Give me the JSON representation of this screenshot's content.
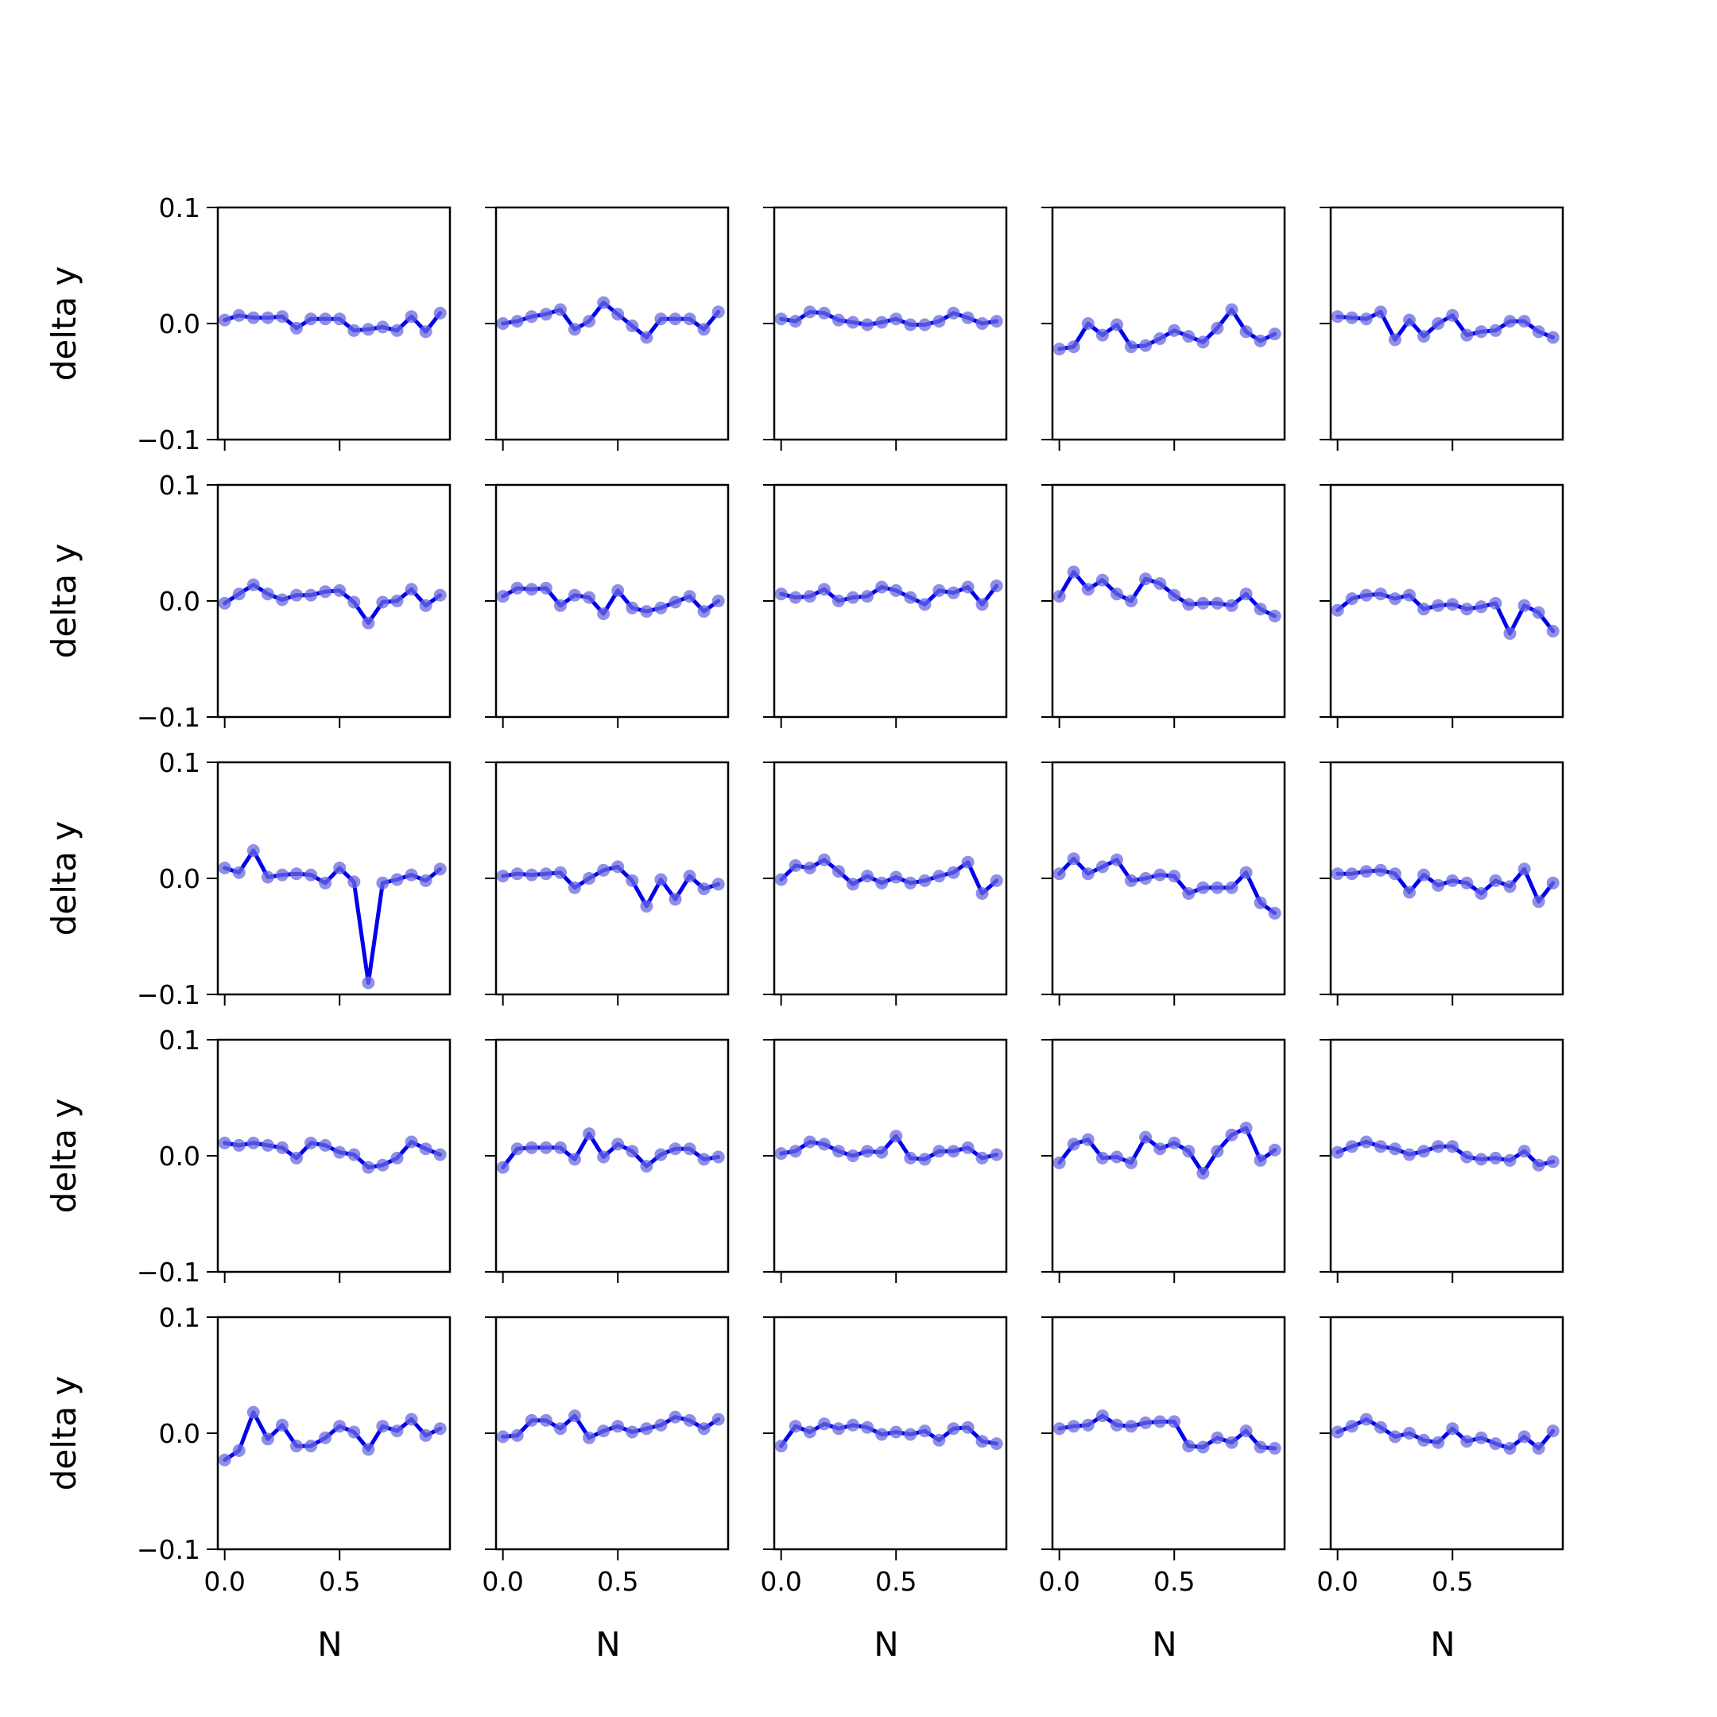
{
  "chart_data": {
    "type": "line",
    "layout": "5x5 grid of small multiples, shared axes",
    "xlabel": "N",
    "ylabel": "delta y",
    "xlim": [
      -0.03,
      0.98
    ],
    "ylim": [
      -0.1,
      0.1
    ],
    "xticks": [
      0.0,
      0.5
    ],
    "xtick_labels": [
      "0.0",
      "0.5"
    ],
    "yticks": [
      0.1,
      0.0,
      -0.1
    ],
    "ytick_labels": [
      "0.1",
      "0.0",
      "−0.1"
    ],
    "x": [
      0.0,
      0.0625,
      0.125,
      0.1875,
      0.25,
      0.3125,
      0.375,
      0.4375,
      0.5,
      0.5625,
      0.625,
      0.6875,
      0.75,
      0.8125,
      0.875,
      0.9375
    ],
    "line_color": "#0000ee",
    "marker_color": "#6a6ae0",
    "panels": [
      {
        "values": [
          0.003,
          0.007,
          0.005,
          0.005,
          0.006,
          -0.004,
          0.004,
          0.004,
          0.004,
          -0.006,
          -0.005,
          -0.003,
          -0.006,
          0.006,
          -0.007,
          0.009
        ]
      },
      {
        "values": [
          0.0,
          0.002,
          0.006,
          0.008,
          0.012,
          -0.005,
          0.002,
          0.018,
          0.008,
          -0.002,
          -0.012,
          0.004,
          0.004,
          0.004,
          -0.005,
          0.01
        ]
      },
      {
        "values": [
          0.004,
          0.002,
          0.01,
          0.009,
          0.003,
          0.001,
          -0.001,
          0.001,
          0.004,
          -0.001,
          -0.001,
          0.002,
          0.009,
          0.005,
          0.0,
          0.002
        ]
      },
      {
        "values": [
          -0.022,
          -0.02,
          0.0,
          -0.01,
          -0.001,
          -0.02,
          -0.019,
          -0.013,
          -0.006,
          -0.011,
          -0.016,
          -0.004,
          0.012,
          -0.007,
          -0.015,
          -0.009
        ]
      },
      {
        "values": [
          0.006,
          0.005,
          0.004,
          0.01,
          -0.014,
          0.003,
          -0.011,
          0.0,
          0.007,
          -0.01,
          -0.007,
          -0.006,
          0.002,
          0.002,
          -0.007,
          -0.012
        ]
      },
      {
        "values": [
          -0.002,
          0.006,
          0.014,
          0.006,
          0.001,
          0.005,
          0.005,
          0.008,
          0.009,
          -0.001,
          -0.019,
          -0.001,
          0.0,
          0.01,
          -0.004,
          0.005
        ]
      },
      {
        "values": [
          0.004,
          0.011,
          0.01,
          0.011,
          -0.004,
          0.005,
          0.003,
          -0.011,
          0.009,
          -0.006,
          -0.009,
          -0.006,
          -0.001,
          0.004,
          -0.009,
          0.0
        ]
      },
      {
        "values": [
          0.006,
          0.003,
          0.004,
          0.01,
          0.0,
          0.003,
          0.004,
          0.012,
          0.009,
          0.003,
          -0.003,
          0.009,
          0.007,
          0.012,
          -0.003,
          0.013
        ]
      },
      {
        "values": [
          0.004,
          0.025,
          0.01,
          0.018,
          0.006,
          0.0,
          0.019,
          0.015,
          0.005,
          -0.003,
          -0.002,
          -0.002,
          -0.004,
          0.006,
          -0.007,
          -0.013
        ]
      },
      {
        "values": [
          -0.008,
          0.002,
          0.005,
          0.006,
          0.002,
          0.005,
          -0.007,
          -0.004,
          -0.003,
          -0.007,
          -0.005,
          -0.002,
          -0.028,
          -0.004,
          -0.01,
          -0.026
        ]
      },
      {
        "values": [
          0.009,
          0.005,
          0.024,
          0.001,
          0.003,
          0.004,
          0.003,
          -0.004,
          0.009,
          -0.003,
          -0.09,
          -0.004,
          -0.001,
          0.003,
          -0.002,
          0.008
        ]
      },
      {
        "values": [
          0.002,
          0.004,
          0.003,
          0.004,
          0.005,
          -0.008,
          0.0,
          0.007,
          0.01,
          -0.002,
          -0.024,
          -0.001,
          -0.018,
          0.002,
          -0.009,
          -0.005
        ]
      },
      {
        "values": [
          -0.001,
          0.011,
          0.009,
          0.016,
          0.006,
          -0.005,
          0.002,
          -0.004,
          0.001,
          -0.004,
          -0.002,
          0.002,
          0.005,
          0.014,
          -0.013,
          -0.002
        ]
      },
      {
        "values": [
          0.004,
          0.017,
          0.004,
          0.01,
          0.016,
          -0.002,
          0.0,
          0.003,
          0.002,
          -0.013,
          -0.008,
          -0.008,
          -0.008,
          0.005,
          -0.021,
          -0.03
        ]
      },
      {
        "values": [
          0.004,
          0.004,
          0.006,
          0.007,
          0.004,
          -0.012,
          0.003,
          -0.006,
          -0.002,
          -0.004,
          -0.013,
          -0.002,
          -0.007,
          0.008,
          -0.02,
          -0.004
        ]
      },
      {
        "values": [
          0.011,
          0.009,
          0.011,
          0.009,
          0.007,
          -0.002,
          0.011,
          0.009,
          0.003,
          0.001,
          -0.01,
          -0.008,
          -0.002,
          0.012,
          0.006,
          0.001
        ]
      },
      {
        "values": [
          -0.01,
          0.006,
          0.007,
          0.007,
          0.007,
          -0.003,
          0.019,
          -0.001,
          0.01,
          0.004,
          -0.009,
          0.001,
          0.006,
          0.006,
          -0.003,
          -0.001
        ]
      },
      {
        "values": [
          0.002,
          0.004,
          0.012,
          0.01,
          0.004,
          0.0,
          0.004,
          0.003,
          0.017,
          -0.002,
          -0.003,
          0.004,
          0.004,
          0.007,
          -0.002,
          0.001
        ]
      },
      {
        "values": [
          -0.006,
          0.01,
          0.014,
          -0.002,
          -0.001,
          -0.006,
          0.016,
          0.006,
          0.011,
          0.004,
          -0.015,
          0.004,
          0.018,
          0.024,
          -0.004,
          0.005
        ]
      },
      {
        "values": [
          0.003,
          0.008,
          0.012,
          0.008,
          0.006,
          0.001,
          0.004,
          0.008,
          0.008,
          -0.001,
          -0.003,
          -0.002,
          -0.004,
          0.004,
          -0.008,
          -0.005
        ]
      },
      {
        "values": [
          -0.023,
          -0.015,
          0.018,
          -0.005,
          0.007,
          -0.011,
          -0.011,
          -0.004,
          0.006,
          0.001,
          -0.014,
          0.006,
          0.002,
          0.012,
          -0.002,
          0.004
        ]
      },
      {
        "values": [
          -0.003,
          -0.002,
          0.011,
          0.011,
          0.004,
          0.015,
          -0.004,
          0.002,
          0.006,
          0.001,
          0.004,
          0.007,
          0.014,
          0.011,
          0.004,
          0.012
        ]
      },
      {
        "values": [
          -0.011,
          0.006,
          0.001,
          0.008,
          0.004,
          0.007,
          0.005,
          -0.001,
          0.001,
          -0.001,
          0.002,
          -0.006,
          0.004,
          0.005,
          -0.007,
          -0.009
        ]
      },
      {
        "values": [
          0.004,
          0.006,
          0.007,
          0.015,
          0.007,
          0.006,
          0.009,
          0.01,
          0.01,
          -0.011,
          -0.012,
          -0.004,
          -0.008,
          0.002,
          -0.012,
          -0.013
        ]
      },
      {
        "values": [
          0.001,
          0.006,
          0.012,
          0.005,
          -0.003,
          0.0,
          -0.006,
          -0.008,
          0.004,
          -0.007,
          -0.004,
          -0.009,
          -0.013,
          -0.003,
          -0.013,
          0.002
        ]
      }
    ]
  }
}
